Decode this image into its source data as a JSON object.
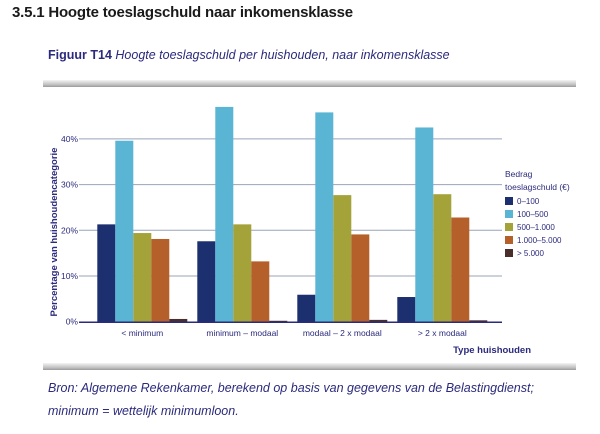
{
  "section": {
    "title": "3.5.1 Hoogte toeslagschuld naar inkomensklasse"
  },
  "figure": {
    "number": "Figuur T14",
    "caption": "Hoogte toeslagschuld per huishouden, naar inkomensklasse"
  },
  "source": {
    "line1": "Bron: Algemene Rekenkamer, berekend op basis van gegevens van de Belastingdienst;",
    "line2": "minimum = wettelijk minimumloon."
  },
  "chart_data": {
    "type": "bar",
    "title": "Hoogte toeslagschuld per huishouden, naar inkomensklasse",
    "xlabel": "Type huishouden",
    "ylabel": "Percentage van huishoudencategorie",
    "ylim": [
      0,
      48
    ],
    "yticks": [
      0,
      10,
      20,
      30,
      40
    ],
    "ytick_labels": [
      "0%",
      "10%",
      "20%",
      "30%",
      "40%"
    ],
    "grid": true,
    "legend_title": "Bedrag toeslagschuld (€)",
    "legend_title_lines": [
      "Bedrag",
      "toeslagschuld (€)"
    ],
    "legend_position": "right",
    "categories": [
      "< minimum",
      "minimum – modaal",
      "modaal – 2 x modaal",
      "> 2 x modaal"
    ],
    "series": [
      {
        "name": "0–100",
        "color": "#1c2f6e",
        "values": [
          21.3,
          17.6,
          5.9,
          5.4
        ]
      },
      {
        "name": "100–500",
        "color": "#5ab4d3",
        "values": [
          39.6,
          47.0,
          45.8,
          42.5
        ]
      },
      {
        "name": "500–1.000",
        "color": "#a4a33a",
        "values": [
          19.4,
          21.3,
          27.7,
          27.9
        ]
      },
      {
        "name": "1.000–5.000",
        "color": "#b5602b",
        "values": [
          18.1,
          13.2,
          19.1,
          22.8
        ]
      },
      {
        "name": "> 5.000",
        "color": "#4a2e2a",
        "values": [
          0.6,
          0.2,
          0.4,
          0.3
        ]
      }
    ]
  }
}
